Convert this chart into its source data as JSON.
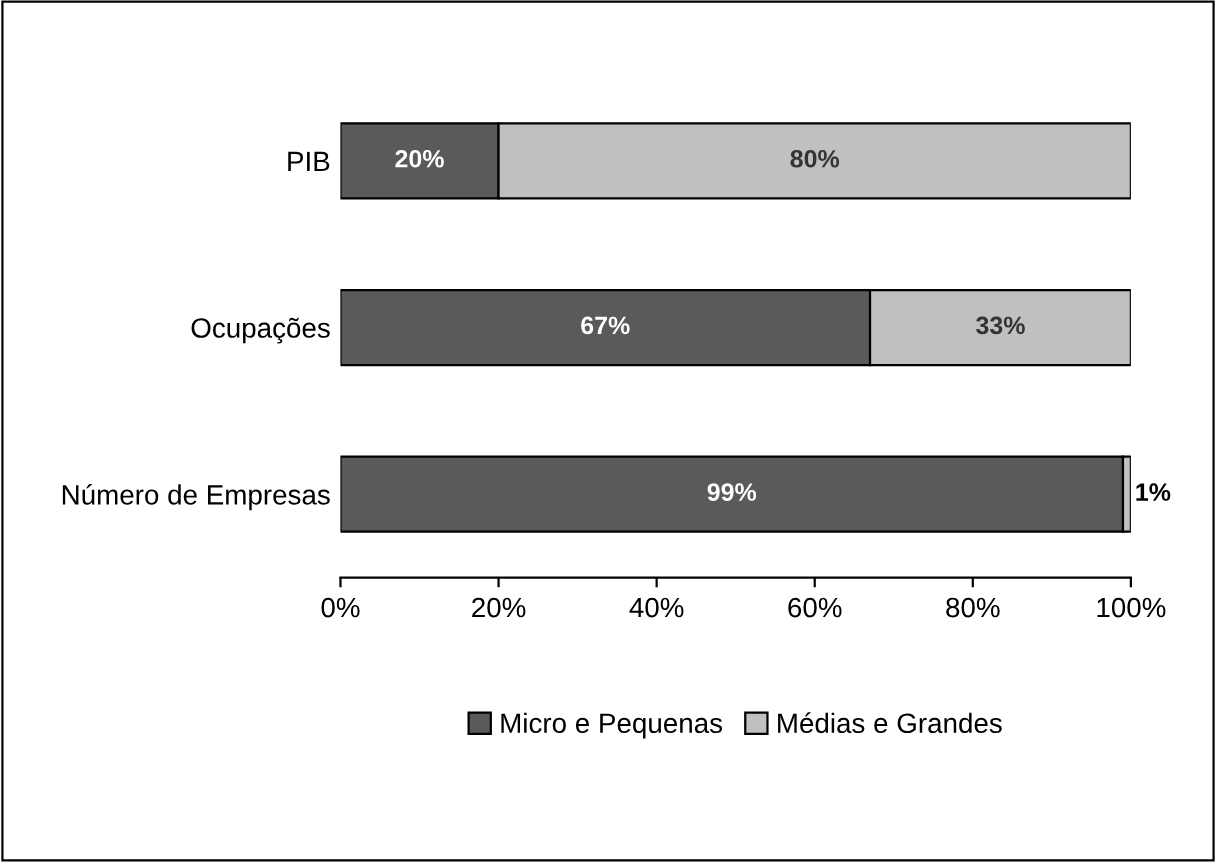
{
  "chart_data": {
    "type": "bar",
    "orientation": "horizontal",
    "stacked": true,
    "categories": [
      "PIB",
      "Ocupações",
      "Número de Empresas"
    ],
    "series": [
      {
        "name": "Micro e Pequenas",
        "color": "#5a5a5a",
        "values": [
          20,
          67,
          99
        ],
        "value_labels": [
          "20%",
          "67%",
          "99%"
        ]
      },
      {
        "name": "Médias e Grandes",
        "color": "#c0c0c0",
        "values": [
          80,
          33,
          1
        ],
        "value_labels": [
          "80%",
          "33%",
          "1%"
        ]
      }
    ],
    "xlim": [
      0,
      100
    ],
    "xticks": [
      {
        "value": 0,
        "label": "0%"
      },
      {
        "value": 20,
        "label": "20%"
      },
      {
        "value": 40,
        "label": "40%"
      },
      {
        "value": 60,
        "label": "60%"
      },
      {
        "value": 80,
        "label": "80%"
      },
      {
        "value": 100,
        "label": "100%"
      }
    ],
    "grid": false,
    "legend": "bottom"
  }
}
